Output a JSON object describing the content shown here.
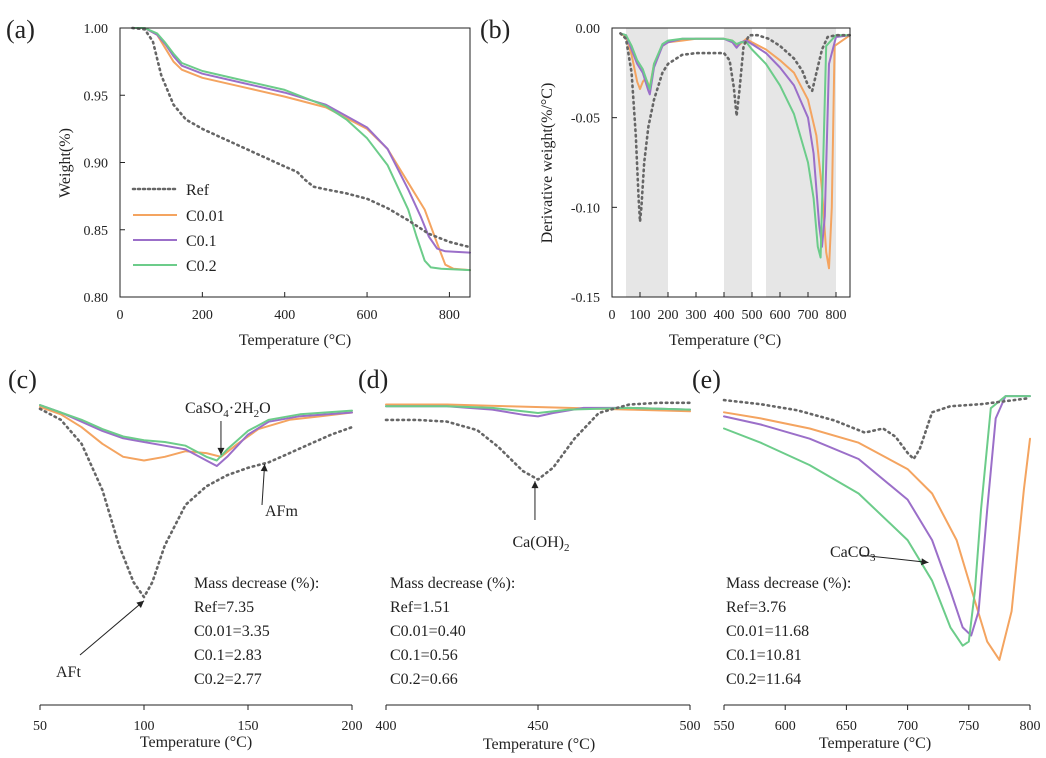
{
  "colors": {
    "Ref": "#666666",
    "C0.01": "#f4a460",
    "C0.1": "#9b6fc9",
    "C0.2": "#6ccc8a",
    "shade": "#e6e6e6"
  },
  "chart_data": [
    {
      "id": "a",
      "panel_label": "(a)",
      "type": "line",
      "xlabel": "Temperature (°C)",
      "ylabel": "Weight(%)",
      "xlim": [
        0,
        850
      ],
      "ylim": [
        0.8,
        1.0
      ],
      "xticks": [
        "0",
        "200",
        "400",
        "600",
        "800"
      ],
      "yticks": [
        "0.80",
        "0.85",
        "0.90",
        "0.95",
        "1.00"
      ],
      "legend": {
        "position": "bottom-left",
        "entries": [
          "Ref",
          "C0.01",
          "C0.1",
          "C0.2"
        ]
      },
      "series": [
        {
          "name": "Ref",
          "style": "dotted",
          "x": [
            30,
            60,
            80,
            100,
            130,
            160,
            200,
            250,
            300,
            350,
            400,
            430,
            450,
            470,
            500,
            550,
            600,
            650,
            700,
            750,
            800,
            850
          ],
          "y": [
            1.0,
            0.999,
            0.99,
            0.965,
            0.943,
            0.932,
            0.925,
            0.918,
            0.911,
            0.904,
            0.897,
            0.893,
            0.887,
            0.882,
            0.88,
            0.877,
            0.873,
            0.866,
            0.857,
            0.847,
            0.841,
            0.837
          ]
        },
        {
          "name": "C0.01",
          "style": "solid",
          "x": [
            30,
            60,
            90,
            110,
            130,
            150,
            200,
            300,
            400,
            500,
            600,
            650,
            700,
            740,
            770,
            790,
            810,
            850
          ],
          "y": [
            1.0,
            1.0,
            0.995,
            0.985,
            0.975,
            0.969,
            0.963,
            0.956,
            0.949,
            0.941,
            0.925,
            0.91,
            0.885,
            0.865,
            0.84,
            0.824,
            0.821,
            0.82
          ]
        },
        {
          "name": "C0.1",
          "style": "solid",
          "x": [
            30,
            60,
            90,
            110,
            130,
            150,
            200,
            300,
            400,
            500,
            600,
            650,
            700,
            730,
            750,
            770,
            790,
            850
          ],
          "y": [
            1.0,
            1.0,
            0.995,
            0.988,
            0.979,
            0.972,
            0.966,
            0.959,
            0.952,
            0.943,
            0.926,
            0.91,
            0.88,
            0.86,
            0.845,
            0.836,
            0.834,
            0.833
          ]
        },
        {
          "name": "C0.2",
          "style": "solid",
          "x": [
            30,
            60,
            90,
            110,
            130,
            150,
            200,
            300,
            400,
            500,
            550,
            600,
            650,
            700,
            720,
            740,
            755,
            780,
            850
          ],
          "y": [
            1.0,
            1.0,
            0.996,
            0.989,
            0.981,
            0.974,
            0.968,
            0.961,
            0.954,
            0.942,
            0.932,
            0.918,
            0.898,
            0.865,
            0.845,
            0.827,
            0.822,
            0.821,
            0.82
          ]
        }
      ]
    },
    {
      "id": "b",
      "panel_label": "(b)",
      "type": "line",
      "xlabel": "Temperature (°C)",
      "ylabel": "Derivative weight(%/°C)",
      "xlim": [
        0,
        850
      ],
      "ylim": [
        -0.15,
        0.0
      ],
      "xticks": [
        "0",
        "100",
        "200",
        "300",
        "400",
        "500",
        "600",
        "700",
        "800"
      ],
      "yticks": [
        "-0.15",
        "-0.10",
        "-0.05",
        "0.00"
      ],
      "shaded_ranges": [
        [
          50,
          200
        ],
        [
          400,
          500
        ],
        [
          550,
          800
        ]
      ],
      "series": [
        {
          "name": "Ref",
          "style": "dotted",
          "x": [
            30,
            50,
            70,
            85,
            95,
            100,
            105,
            115,
            130,
            150,
            180,
            200,
            250,
            300,
            350,
            400,
            420,
            435,
            445,
            455,
            470,
            490,
            520,
            560,
            600,
            650,
            680,
            700,
            715,
            730,
            750,
            770,
            800,
            850
          ],
          "y": [
            -0.003,
            -0.006,
            -0.025,
            -0.06,
            -0.095,
            -0.108,
            -0.1,
            -0.075,
            -0.055,
            -0.04,
            -0.025,
            -0.02,
            -0.015,
            -0.014,
            -0.014,
            -0.014,
            -0.018,
            -0.033,
            -0.049,
            -0.035,
            -0.01,
            -0.004,
            -0.004,
            -0.006,
            -0.01,
            -0.017,
            -0.024,
            -0.032,
            -0.035,
            -0.025,
            -0.012,
            -0.005,
            -0.004,
            -0.004
          ]
        },
        {
          "name": "C0.01",
          "style": "solid",
          "x": [
            30,
            50,
            70,
            90,
            100,
            110,
            120,
            135,
            150,
            180,
            200,
            250,
            300,
            400,
            430,
            450,
            480,
            500,
            550,
            600,
            650,
            700,
            730,
            750,
            765,
            775,
            785,
            795,
            850
          ],
          "y": [
            -0.003,
            -0.005,
            -0.015,
            -0.03,
            -0.034,
            -0.03,
            -0.028,
            -0.033,
            -0.02,
            -0.01,
            -0.008,
            -0.007,
            -0.006,
            -0.006,
            -0.007,
            -0.01,
            -0.006,
            -0.008,
            -0.012,
            -0.018,
            -0.025,
            -0.04,
            -0.06,
            -0.09,
            -0.125,
            -0.134,
            -0.1,
            -0.01,
            -0.004
          ]
        },
        {
          "name": "C0.1",
          "style": "solid",
          "x": [
            30,
            50,
            70,
            90,
            110,
            130,
            135,
            150,
            180,
            200,
            250,
            300,
            400,
            430,
            445,
            460,
            480,
            500,
            550,
            600,
            650,
            700,
            720,
            740,
            750,
            760,
            775,
            800,
            850
          ],
          "y": [
            -0.003,
            -0.004,
            -0.012,
            -0.02,
            -0.025,
            -0.035,
            -0.037,
            -0.022,
            -0.01,
            -0.008,
            -0.006,
            -0.006,
            -0.006,
            -0.008,
            -0.011,
            -0.008,
            -0.007,
            -0.009,
            -0.014,
            -0.022,
            -0.032,
            -0.05,
            -0.07,
            -0.11,
            -0.122,
            -0.105,
            -0.02,
            -0.005,
            -0.004
          ]
        },
        {
          "name": "C0.2",
          "style": "solid",
          "x": [
            30,
            50,
            70,
            90,
            110,
            130,
            135,
            150,
            180,
            200,
            250,
            300,
            400,
            430,
            445,
            460,
            480,
            500,
            550,
            600,
            650,
            700,
            720,
            735,
            745,
            755,
            765,
            800,
            850
          ],
          "y": [
            -0.003,
            -0.004,
            -0.01,
            -0.018,
            -0.023,
            -0.032,
            -0.034,
            -0.02,
            -0.009,
            -0.007,
            -0.006,
            -0.006,
            -0.006,
            -0.007,
            -0.009,
            -0.008,
            -0.008,
            -0.012,
            -0.02,
            -0.032,
            -0.048,
            -0.075,
            -0.095,
            -0.122,
            -0.128,
            -0.07,
            -0.01,
            -0.004,
            -0.004
          ]
        }
      ]
    },
    {
      "id": "c",
      "panel_label": "(c)",
      "type": "line",
      "xlabel": "Temperature (°C)",
      "xlim": [
        50,
        200
      ],
      "ylim": [
        -0.115,
        0.002
      ],
      "xticks": [
        "50",
        "100",
        "150",
        "200"
      ],
      "series": [
        {
          "name": "Ref",
          "style": "dotted",
          "x": [
            50,
            60,
            70,
            80,
            88,
            95,
            100,
            104,
            110,
            120,
            130,
            140,
            150,
            160,
            170,
            180,
            190,
            200
          ],
          "y": [
            -0.006,
            -0.012,
            -0.025,
            -0.05,
            -0.08,
            -0.1,
            -0.108,
            -0.1,
            -0.08,
            -0.058,
            -0.048,
            -0.042,
            -0.038,
            -0.035,
            -0.03,
            -0.025,
            -0.02,
            -0.016
          ]
        },
        {
          "name": "C0.01",
          "style": "solid",
          "x": [
            50,
            60,
            70,
            80,
            90,
            100,
            110,
            120,
            130,
            137,
            145,
            155,
            170,
            185,
            200
          ],
          "y": [
            -0.005,
            -0.009,
            -0.016,
            -0.025,
            -0.032,
            -0.034,
            -0.032,
            -0.029,
            -0.03,
            -0.032,
            -0.025,
            -0.017,
            -0.012,
            -0.01,
            -0.008
          ]
        },
        {
          "name": "C0.1",
          "style": "solid",
          "x": [
            50,
            60,
            70,
            80,
            90,
            100,
            110,
            120,
            130,
            135,
            140,
            150,
            160,
            175,
            200
          ],
          "y": [
            -0.004,
            -0.008,
            -0.013,
            -0.018,
            -0.022,
            -0.024,
            -0.026,
            -0.028,
            -0.034,
            -0.037,
            -0.032,
            -0.02,
            -0.013,
            -0.01,
            -0.008
          ]
        },
        {
          "name": "C0.2",
          "style": "solid",
          "x": [
            50,
            60,
            70,
            80,
            90,
            100,
            110,
            120,
            130,
            135,
            140,
            150,
            160,
            175,
            200
          ],
          "y": [
            -0.004,
            -0.008,
            -0.012,
            -0.017,
            -0.021,
            -0.023,
            -0.024,
            -0.026,
            -0.032,
            -0.034,
            -0.028,
            -0.018,
            -0.012,
            -0.009,
            -0.007
          ]
        }
      ],
      "annotations": [
        {
          "text": "CaSO",
          "sub": "4",
          "mid": "·2H",
          "sub2": "2",
          "end": "O",
          "arrow_to": [
            137,
            -0.031
          ]
        },
        {
          "text": "AFm",
          "arrow_to": [
            158,
            -0.036
          ]
        },
        {
          "text": "AFt",
          "arrow_to": [
            100,
            -0.11
          ]
        }
      ],
      "mass_decrease": [
        "Mass decrease (%):",
        "Ref=7.35",
        "C0.01=3.35",
        "C0.1=2.83",
        "C0.2=2.77"
      ]
    },
    {
      "id": "d",
      "panel_label": "(d)",
      "type": "line",
      "xlabel": "Temperature (°C)",
      "xlim": [
        400,
        500
      ],
      "ylim": [
        -0.054,
        0.0
      ],
      "xticks": [
        "400",
        "450",
        "500"
      ],
      "series": [
        {
          "name": "Ref",
          "style": "dotted",
          "x": [
            400,
            410,
            420,
            430,
            437,
            445,
            450,
            455,
            462,
            470,
            480,
            490,
            500
          ],
          "y": [
            -0.014,
            -0.014,
            -0.015,
            -0.02,
            -0.03,
            -0.044,
            -0.049,
            -0.042,
            -0.025,
            -0.01,
            -0.005,
            -0.004,
            -0.004
          ]
        },
        {
          "name": "C0.01",
          "style": "solid",
          "x": [
            400,
            420,
            440,
            460,
            480,
            500
          ],
          "y": [
            -0.005,
            -0.005,
            -0.006,
            -0.007,
            -0.008,
            -0.009
          ]
        },
        {
          "name": "C0.1",
          "style": "solid",
          "x": [
            400,
            420,
            435,
            445,
            450,
            455,
            465,
            480,
            500
          ],
          "y": [
            -0.006,
            -0.006,
            -0.008,
            -0.011,
            -0.012,
            -0.01,
            -0.007,
            -0.007,
            -0.008
          ]
        },
        {
          "name": "C0.2",
          "style": "solid",
          "x": [
            400,
            420,
            435,
            445,
            450,
            460,
            480,
            500
          ],
          "y": [
            -0.006,
            -0.006,
            -0.007,
            -0.009,
            -0.01,
            -0.008,
            -0.007,
            -0.008
          ]
        }
      ],
      "annotations": [
        {
          "text": "Ca(OH)",
          "sub": "2",
          "arrow_to": [
            449,
            -0.05
          ]
        }
      ],
      "mass_decrease": [
        "Mass decrease (%):",
        "Ref=1.51",
        "C0.01=0.40",
        "C0.1=0.56",
        "C0.2=0.66"
      ]
    },
    {
      "id": "e",
      "panel_label": "(e)",
      "type": "line",
      "xlabel": "Temperature (°C)",
      "xlim": [
        550,
        800
      ],
      "ylim": [
        -0.138,
        -0.002
      ],
      "xticks": [
        "550",
        "600",
        "650",
        "700",
        "750",
        "800"
      ],
      "series": [
        {
          "name": "Ref",
          "style": "dotted",
          "x": [
            550,
            580,
            610,
            640,
            665,
            680,
            690,
            700,
            705,
            710,
            720,
            735,
            760,
            800
          ],
          "y": [
            -0.006,
            -0.008,
            -0.011,
            -0.016,
            -0.022,
            -0.02,
            -0.024,
            -0.032,
            -0.035,
            -0.03,
            -0.012,
            -0.009,
            -0.008,
            -0.005
          ]
        },
        {
          "name": "C0.01",
          "style": "solid",
          "x": [
            550,
            580,
            620,
            660,
            700,
            720,
            740,
            755,
            765,
            775,
            785,
            795,
            800
          ],
          "y": [
            -0.012,
            -0.015,
            -0.02,
            -0.027,
            -0.04,
            -0.052,
            -0.075,
            -0.105,
            -0.125,
            -0.134,
            -0.11,
            -0.05,
            -0.025
          ]
        },
        {
          "name": "C0.1",
          "style": "solid",
          "x": [
            550,
            580,
            620,
            660,
            700,
            720,
            735,
            745,
            752,
            758,
            765,
            772,
            780,
            800
          ],
          "y": [
            -0.014,
            -0.018,
            -0.025,
            -0.035,
            -0.055,
            -0.075,
            -0.1,
            -0.118,
            -0.122,
            -0.11,
            -0.06,
            -0.015,
            -0.004,
            -0.004
          ]
        },
        {
          "name": "C0.2",
          "style": "solid",
          "x": [
            550,
            580,
            620,
            660,
            700,
            720,
            735,
            745,
            750,
            755,
            760,
            768,
            780,
            800
          ],
          "y": [
            -0.02,
            -0.027,
            -0.038,
            -0.052,
            -0.075,
            -0.095,
            -0.118,
            -0.127,
            -0.125,
            -0.1,
            -0.06,
            -0.01,
            -0.004,
            -0.004
          ]
        }
      ],
      "annotations": [
        {
          "text": "CaCO",
          "sub": "3",
          "arrow_to": [
            717,
            -0.086
          ]
        }
      ],
      "mass_decrease": [
        "Mass decrease (%):",
        "Ref=3.76",
        "C0.01=11.68",
        "C0.1=10.81",
        "C0.2=11.64"
      ]
    }
  ]
}
